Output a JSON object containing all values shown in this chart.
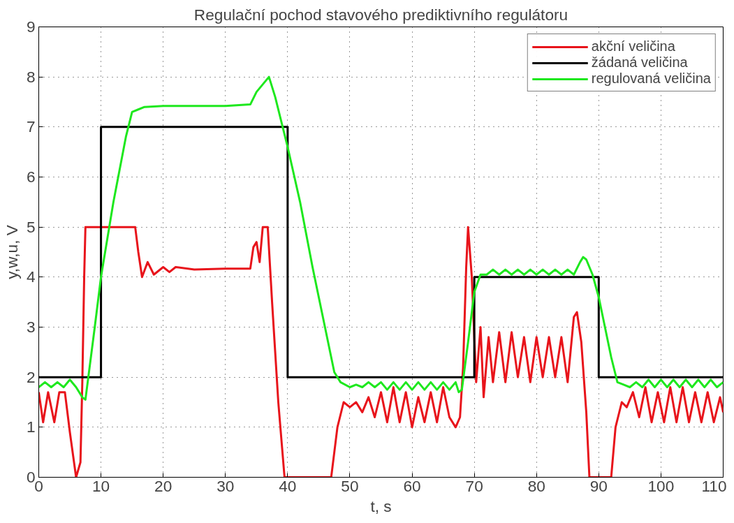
{
  "chart_data": {
    "type": "line",
    "title": "Regulační pochod stavového prediktivního regulátoru",
    "xlabel": "t, s",
    "ylabel": "y,w,u, V",
    "xlim": [
      0,
      110
    ],
    "xticks": [
      0,
      10,
      20,
      30,
      40,
      50,
      60,
      70,
      80,
      90,
      100,
      110
    ],
    "ylim": [
      0,
      9
    ],
    "yticks": [
      0,
      1,
      2,
      3,
      4,
      5,
      6,
      7,
      8,
      9
    ],
    "grid": true,
    "legend": "top right",
    "series": [
      {
        "name": "akční veličina",
        "color": "#e8141b",
        "x": [
          0,
          0.7,
          1.5,
          2.5,
          3.3,
          4.2,
          5,
          6,
          6.7,
          7,
          7.3,
          7.5,
          15.5,
          16,
          16.6,
          17.5,
          18.5,
          20,
          21,
          22,
          25,
          30,
          34,
          34.5,
          35,
          35.5,
          36,
          36.8,
          37.5,
          38.5,
          39.5,
          47,
          48,
          49,
          50,
          51,
          52,
          53,
          54,
          55,
          56,
          57,
          58,
          59,
          60,
          61,
          62,
          63,
          64,
          65,
          66,
          67,
          67.7,
          68.2,
          68.7,
          69,
          69.6,
          70.3,
          71,
          71.5,
          72.3,
          73,
          74,
          75,
          76,
          77,
          78,
          79,
          80,
          81,
          82,
          83,
          84,
          85,
          86,
          86.5,
          87.2,
          88,
          88.5,
          92,
          92.7,
          93.7,
          94.5,
          95.5,
          96.5,
          97.5,
          98.5,
          99.5,
          100.5,
          101.5,
          102.5,
          103.5,
          104.5,
          105.5,
          106.5,
          107.5,
          108.5,
          109.5,
          110
        ],
        "values": [
          1.7,
          1.1,
          1.7,
          1.1,
          1.7,
          1.7,
          0.9,
          0,
          0.3,
          1.9,
          4,
          5,
          5,
          4.5,
          4,
          4.3,
          4.05,
          4.2,
          4.1,
          4.2,
          4.15,
          4.17,
          4.17,
          4.6,
          4.7,
          4.3,
          5,
          5,
          3.5,
          1.5,
          0,
          0,
          1,
          1.5,
          1.4,
          1.5,
          1.3,
          1.6,
          1.2,
          1.7,
          1.1,
          1.8,
          1.1,
          1.7,
          1,
          1.6,
          1.1,
          1.7,
          1.1,
          1.8,
          1.2,
          1,
          1.2,
          2.2,
          4.2,
          5,
          4,
          1.9,
          3,
          1.6,
          2.8,
          1.9,
          2.9,
          1.9,
          2.9,
          2,
          2.8,
          1.9,
          2.8,
          2,
          2.8,
          2,
          2.8,
          1.9,
          3.2,
          3.3,
          2.7,
          1.3,
          0,
          0,
          1,
          1.5,
          1.4,
          1.7,
          1.2,
          1.8,
          1.1,
          1.7,
          1.1,
          1.8,
          1.1,
          1.8,
          1.1,
          1.7,
          1.1,
          1.7,
          1.1,
          1.6,
          1.3
        ]
      },
      {
        "name": "žádaná veličina",
        "color": "#000000",
        "x": [
          0,
          10,
          10,
          40,
          40,
          70,
          70,
          90,
          90,
          110
        ],
        "values": [
          2,
          2,
          7,
          7,
          2,
          2,
          4,
          4,
          2,
          2
        ]
      },
      {
        "name": "regulovaná veličina",
        "color": "#1ee81e",
        "x": [
          0,
          1,
          2,
          3,
          4,
          5,
          6,
          7,
          7.5,
          9,
          10,
          12,
          14,
          15,
          16,
          17,
          20,
          25,
          30,
          34,
          35,
          37,
          38,
          40,
          42,
          44,
          46,
          47.5,
          48.5,
          50,
          51,
          52,
          53,
          54,
          55,
          56,
          57,
          58,
          59,
          60,
          61,
          62,
          63,
          64,
          65,
          66,
          67,
          67.5,
          68,
          69,
          70,
          71,
          72,
          73,
          74,
          75,
          76,
          77,
          78,
          79,
          80,
          81,
          82,
          83,
          84,
          85,
          86,
          87,
          87.5,
          88,
          89,
          90,
          91,
          92,
          93,
          94,
          95,
          96,
          97,
          98,
          99,
          100,
          101,
          102,
          103,
          104,
          105,
          106,
          107,
          108,
          109,
          110
        ],
        "values": [
          1.8,
          1.9,
          1.8,
          1.9,
          1.8,
          1.95,
          1.8,
          1.6,
          1.55,
          3,
          4,
          5.5,
          6.8,
          7.3,
          7.35,
          7.4,
          7.42,
          7.42,
          7.42,
          7.45,
          7.7,
          8,
          7.6,
          6.6,
          5.5,
          4.2,
          3,
          2.1,
          1.9,
          1.8,
          1.85,
          1.8,
          1.9,
          1.8,
          1.9,
          1.75,
          1.9,
          1.75,
          1.9,
          1.75,
          1.9,
          1.75,
          1.9,
          1.75,
          1.9,
          1.75,
          1.9,
          1.7,
          1.75,
          2.7,
          3.7,
          4.05,
          4.05,
          4.15,
          4.05,
          4.15,
          4.05,
          4.15,
          4.05,
          4.15,
          4.05,
          4.15,
          4.05,
          4.15,
          4.05,
          4.15,
          4.05,
          4.3,
          4.4,
          4.35,
          4.05,
          3.6,
          3,
          2.4,
          1.9,
          1.85,
          1.8,
          1.9,
          1.8,
          1.95,
          1.8,
          1.95,
          1.8,
          1.95,
          1.8,
          1.95,
          1.8,
          1.95,
          1.8,
          1.95,
          1.8,
          1.9
        ]
      }
    ]
  }
}
